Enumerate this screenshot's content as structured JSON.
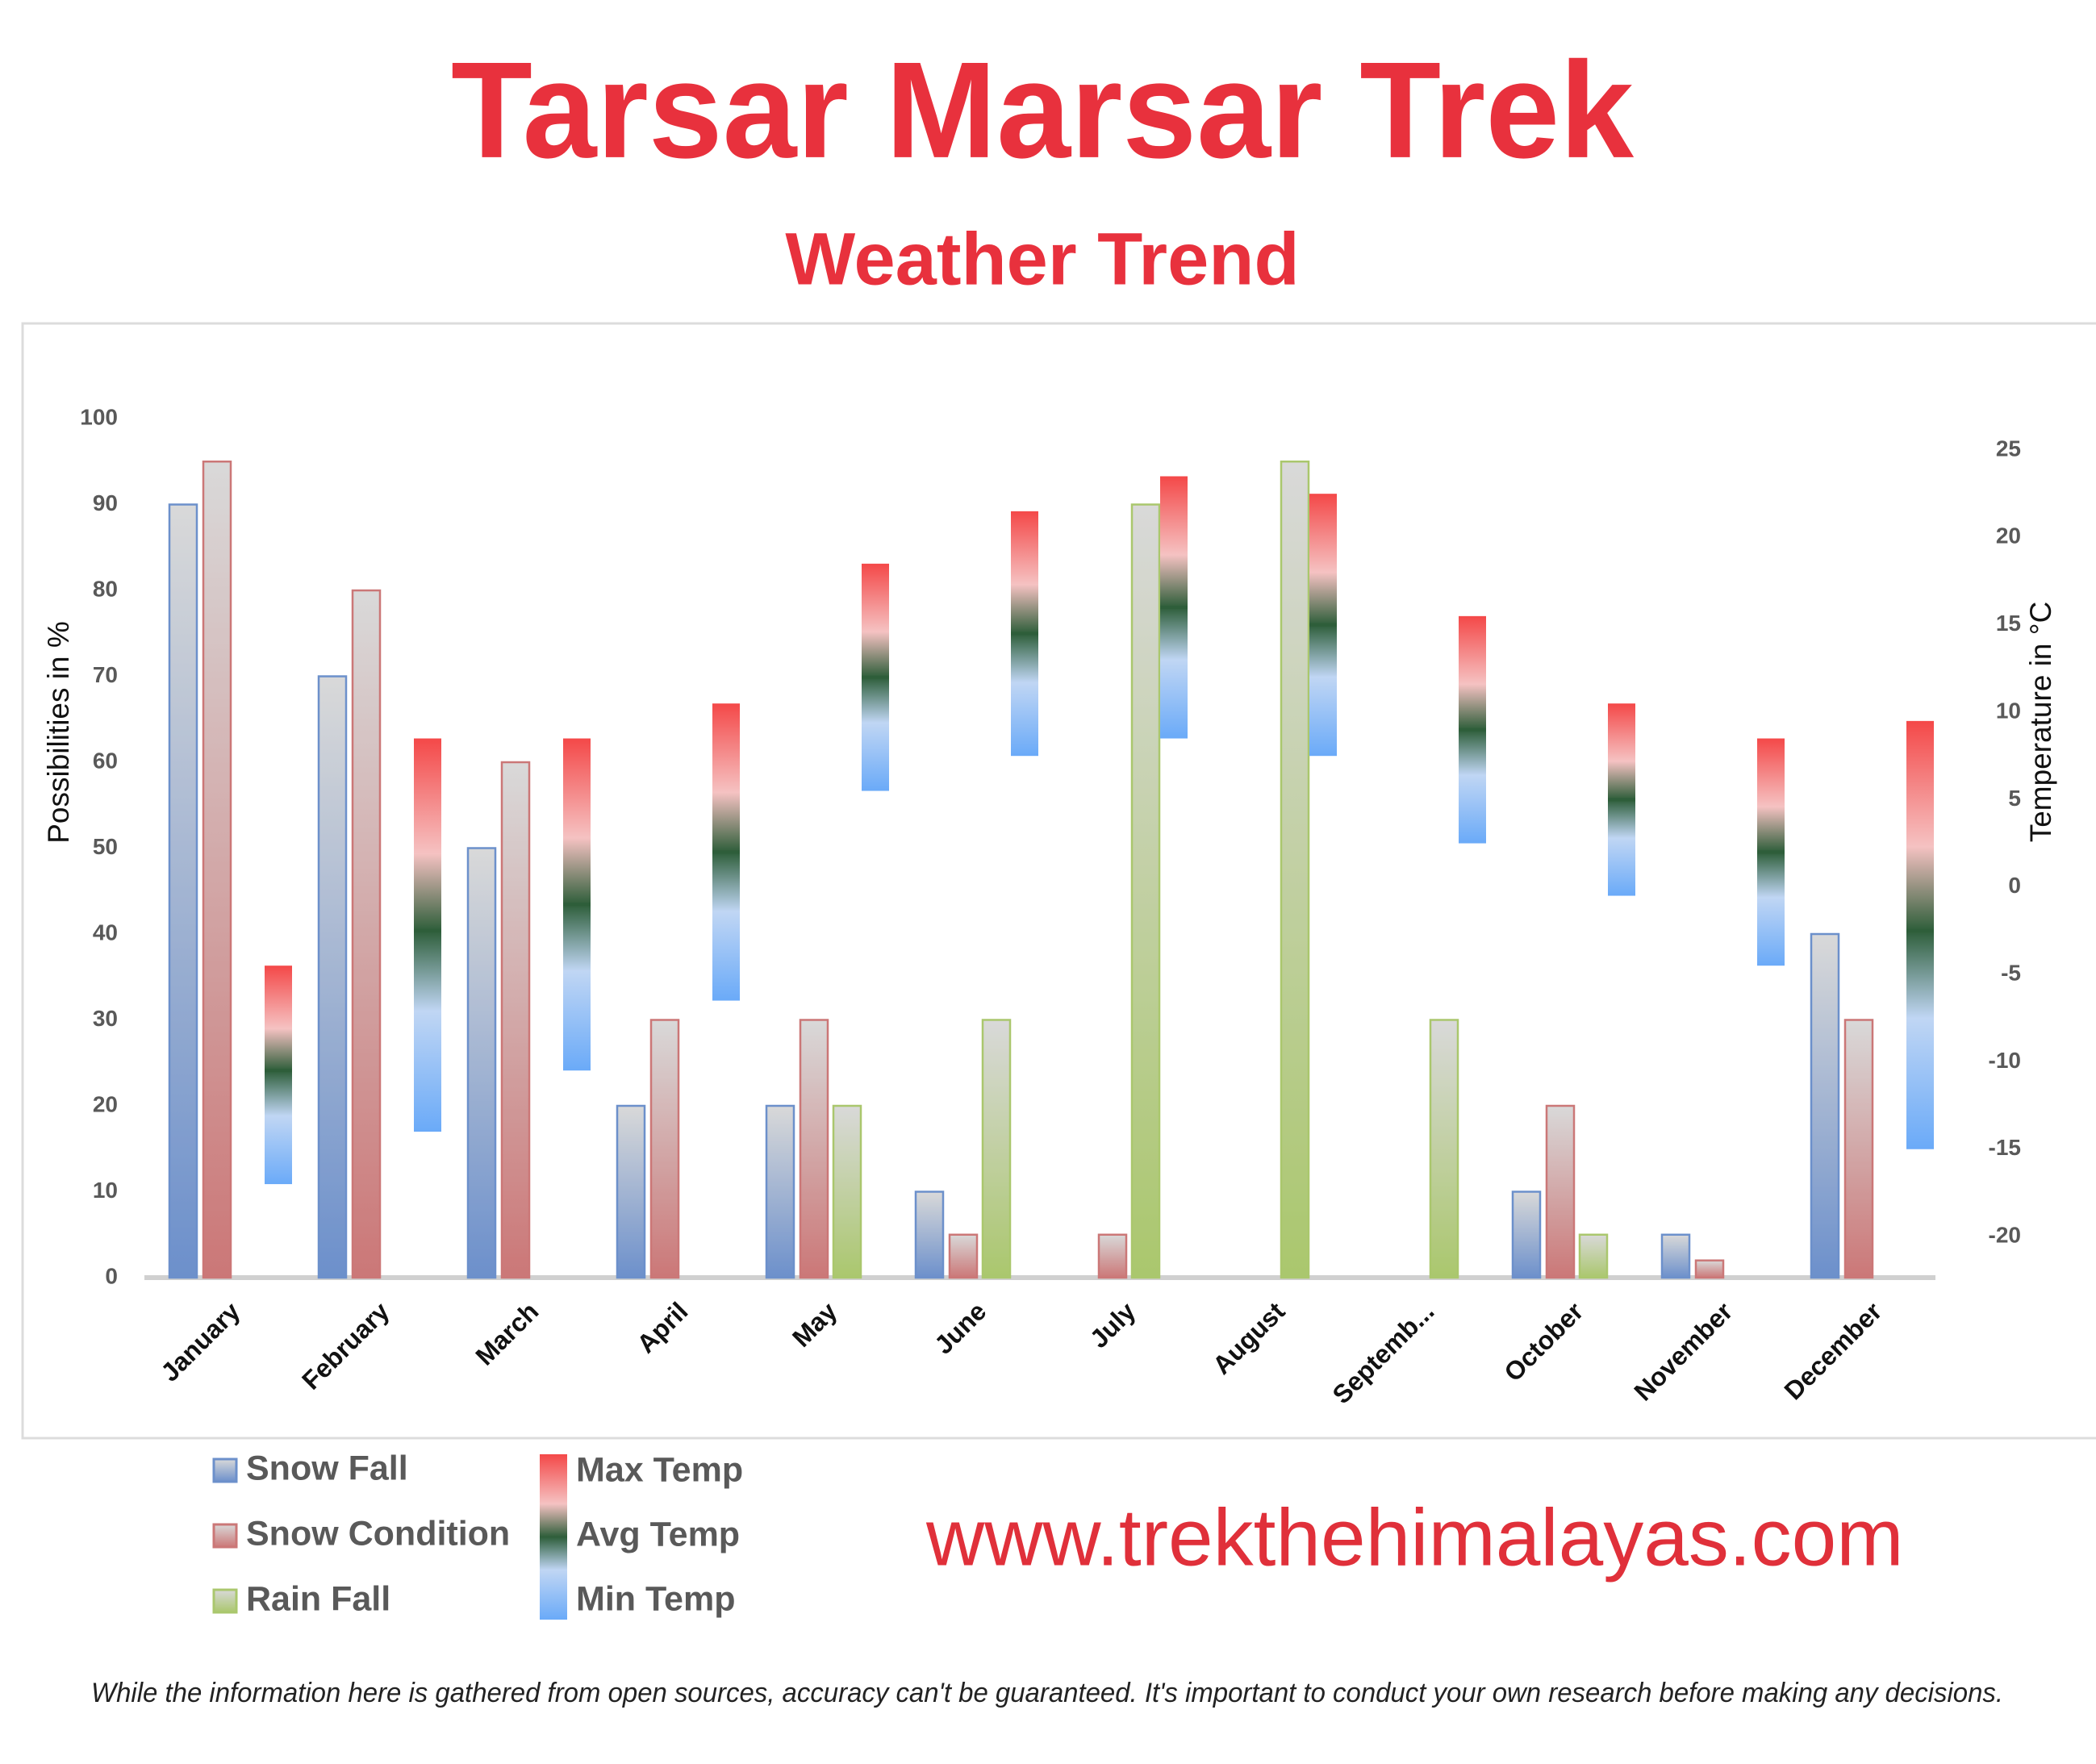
{
  "chart_data": {
    "type": "bar",
    "title": "Tarsar Marsar Trek",
    "subtitle": "Weather Trend",
    "ylabel": "Possibilities in %",
    "y2label": "Temperature in °C",
    "categories": [
      "January",
      "February",
      "March",
      "April",
      "May",
      "June",
      "July",
      "August",
      "Septemb...",
      "October",
      "November",
      "December"
    ],
    "series": [
      {
        "name": "Snow Fall",
        "color": "#7fa9ef",
        "values": [
          90,
          70,
          50,
          20,
          20,
          10,
          0,
          0,
          0,
          10,
          5,
          40
        ]
      },
      {
        "name": "Snow Condition",
        "color": "#ef8c8c",
        "values": [
          95,
          80,
          60,
          30,
          30,
          5,
          5,
          0,
          0,
          20,
          2,
          30
        ]
      },
      {
        "name": "Rain Fall",
        "color": "#c8ea80",
        "values": [
          0,
          0,
          0,
          0,
          20,
          30,
          90,
          95,
          30,
          5,
          0,
          0
        ]
      },
      {
        "name": "Max Temp",
        "color": "#f44848",
        "axis": "y2",
        "values": [
          -4.5,
          8.5,
          8.5,
          10.5,
          18.5,
          21.5,
          23.5,
          22.5,
          15.5,
          10.5,
          8.5,
          9.5
        ]
      },
      {
        "name": "Avg Temp",
        "color": "#2e5e3a",
        "axis": "y2",
        "values": [
          -10.5,
          -2.5,
          -1,
          2,
          12,
          14.5,
          16,
          15,
          9,
          5,
          2,
          -2.5
        ]
      },
      {
        "name": "Min Temp",
        "color": "#6aaaf8",
        "axis": "y2",
        "values": [
          -17,
          -14,
          -10.5,
          -6.5,
          5.5,
          7.5,
          8.5,
          7.5,
          2.5,
          -0.5,
          -4.5,
          -15
        ]
      }
    ],
    "ylim": [
      0,
      100
    ],
    "yticks": [
      0,
      10,
      20,
      30,
      40,
      50,
      60,
      70,
      80,
      90,
      100
    ],
    "y2lim": [
      -22.35,
      26.8
    ],
    "y2ticks": [
      -20,
      -15,
      -10,
      -5,
      0,
      5,
      10,
      15,
      20,
      25
    ],
    "grid": false
  },
  "website": "www.trekthehimalayas.com",
  "disclaimer": "While the information here is gathered from open sources, accuracy can't be guaranteed. It's important to conduct your own research before making any decisions."
}
